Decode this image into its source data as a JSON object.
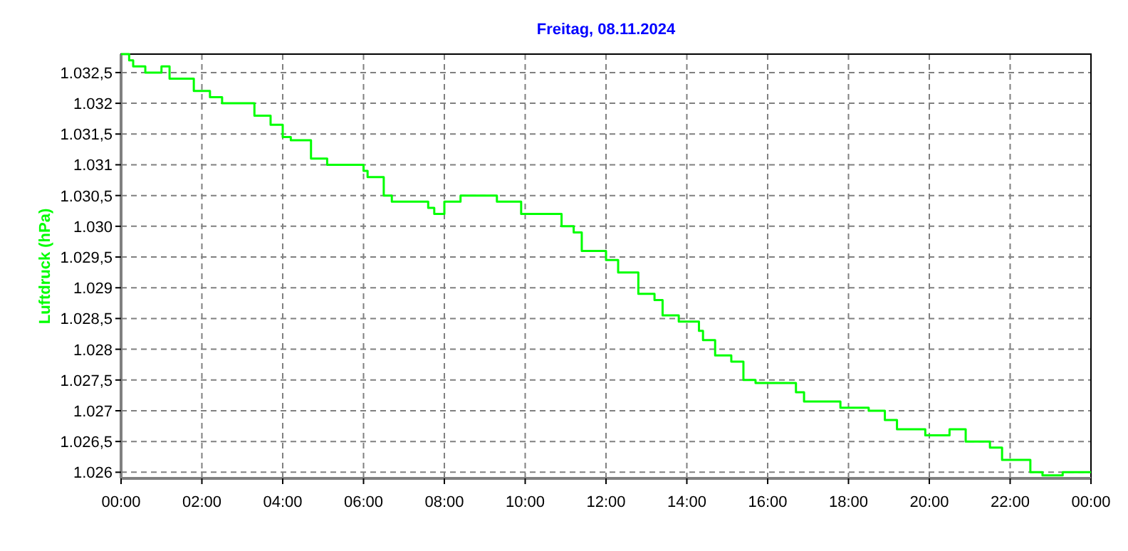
{
  "chart_data": {
    "type": "step",
    "title": "Freitag, 08.11.2024",
    "ylabel": "Luftdruck (hPa)",
    "x": [
      0,
      0.2,
      0.3,
      0.6,
      1.0,
      1.2,
      1.6,
      1.8,
      2.2,
      2.5,
      3.3,
      3.7,
      4.0,
      4.2,
      4.7,
      5.1,
      6.0,
      6.1,
      6.5,
      6.7,
      7.6,
      7.75,
      8.0,
      8.4,
      9.3,
      9.9,
      10.9,
      11.2,
      11.4,
      12.0,
      12.3,
      12.8,
      13.2,
      13.4,
      13.8,
      14.3,
      14.4,
      14.7,
      15.1,
      15.4,
      15.7,
      16.7,
      16.9,
      17.8,
      18.5,
      18.9,
      19.2,
      19.9,
      20.5,
      20.9,
      21.5,
      21.8,
      22.5,
      22.8,
      23.3,
      24
    ],
    "series": [
      {
        "color": "#00ff00",
        "values": [
          1032.8,
          1032.7,
          1032.6,
          1032.5,
          1032.6,
          1032.4,
          1032.4,
          1032.2,
          1032.1,
          1032.0,
          1031.8,
          1031.65,
          1031.45,
          1031.4,
          1031.1,
          1031.0,
          1030.9,
          1030.8,
          1030.5,
          1030.4,
          1030.3,
          1030.2,
          1030.4,
          1030.5,
          1030.4,
          1030.2,
          1030.0,
          1029.9,
          1029.6,
          1029.45,
          1029.25,
          1028.9,
          1028.8,
          1028.55,
          1028.45,
          1028.3,
          1028.15,
          1027.9,
          1027.8,
          1027.5,
          1027.45,
          1027.3,
          1027.15,
          1027.05,
          1027.0,
          1026.85,
          1026.7,
          1026.6,
          1026.7,
          1026.5,
          1026.4,
          1026.2,
          1026.0,
          1025.95,
          1026.0,
          1026.0
        ]
      }
    ],
    "xlim": [
      0,
      24
    ],
    "xticks": [
      {
        "value": 0,
        "label": "00:00"
      },
      {
        "value": 2,
        "label": "02:00"
      },
      {
        "value": 4,
        "label": "04:00"
      },
      {
        "value": 6,
        "label": "06:00"
      },
      {
        "value": 8,
        "label": "08:00"
      },
      {
        "value": 10,
        "label": "10:00"
      },
      {
        "value": 12,
        "label": "12:00"
      },
      {
        "value": 14,
        "label": "14:00"
      },
      {
        "value": 16,
        "label": "16:00"
      },
      {
        "value": 18,
        "label": "18:00"
      },
      {
        "value": 20,
        "label": "20:00"
      },
      {
        "value": 22,
        "label": "22:00"
      },
      {
        "value": 24,
        "label": "00:00"
      }
    ],
    "ylim": [
      1025.9,
      1032.8
    ],
    "yticks": [
      {
        "value": 1026,
        "label": "1.026"
      },
      {
        "value": 1026.5,
        "label": "1.026,5"
      },
      {
        "value": 1027,
        "label": "1.027"
      },
      {
        "value": 1027.5,
        "label": "1.027,5"
      },
      {
        "value": 1028,
        "label": "1.028"
      },
      {
        "value": 1028.5,
        "label": "1.028,5"
      },
      {
        "value": 1029,
        "label": "1.029"
      },
      {
        "value": 1029.5,
        "label": "1.029,5"
      },
      {
        "value": 1030,
        "label": "1.030"
      },
      {
        "value": 1030.5,
        "label": "1.030,5"
      },
      {
        "value": 1031,
        "label": "1.031"
      },
      {
        "value": 1031.5,
        "label": "1.031,5"
      },
      {
        "value": 1032,
        "label": "1.032"
      },
      {
        "value": 1032.5,
        "label": "1.032,5"
      }
    ],
    "grid": true
  }
}
